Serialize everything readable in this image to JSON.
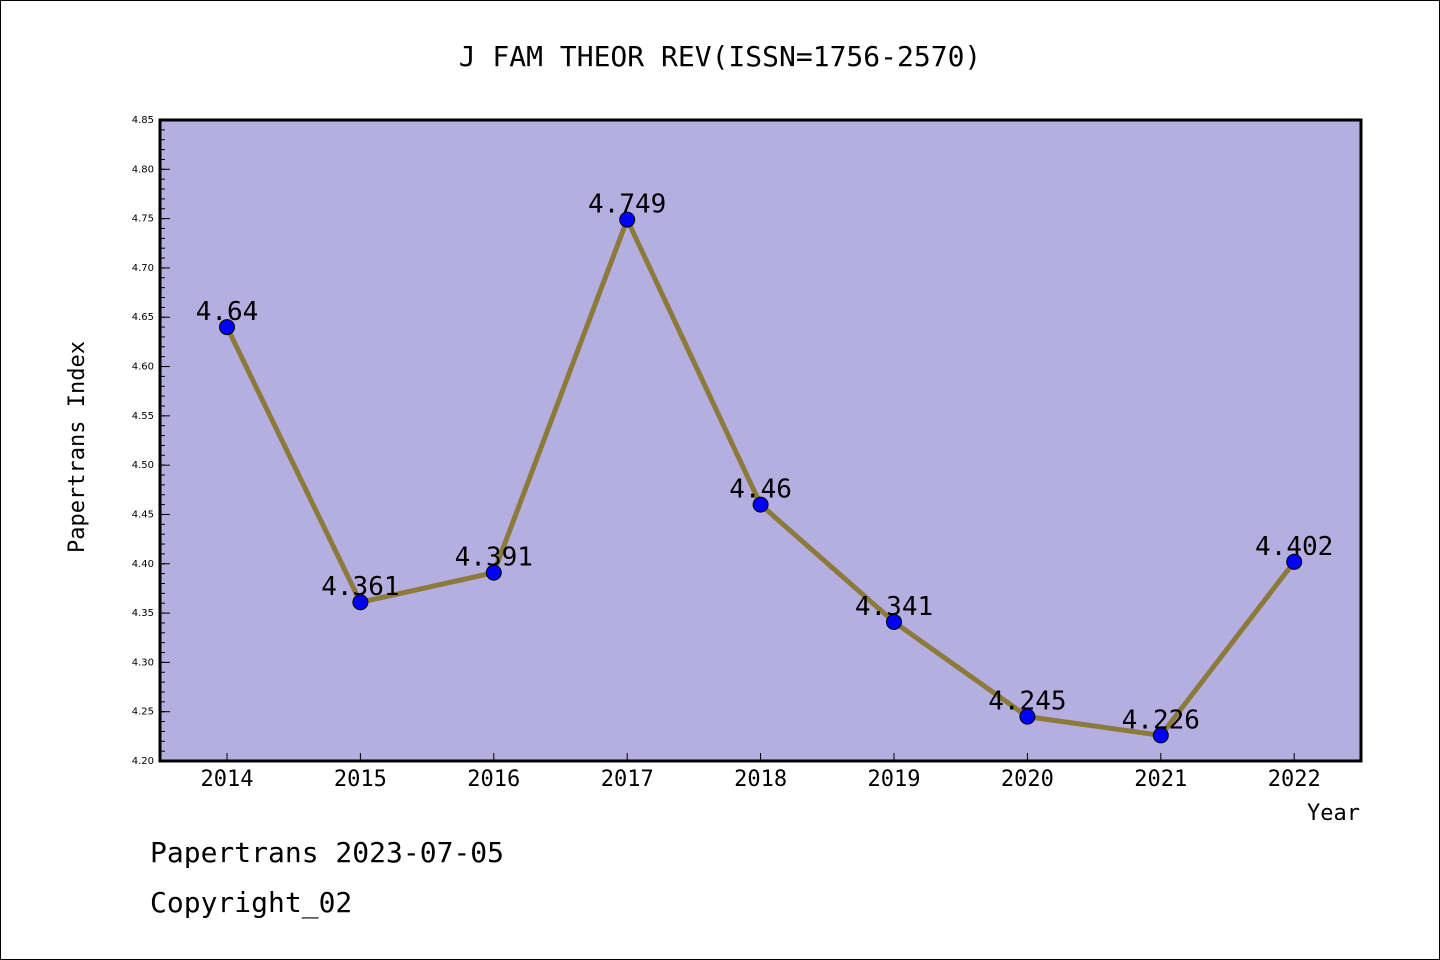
{
  "chart_data": {
    "type": "line",
    "title": "J FAM THEOR REV(ISSN=1756-2570)",
    "xlabel": "Year",
    "ylabel": "Papertrans Index",
    "categories": [
      "2014",
      "2015",
      "2016",
      "2017",
      "2018",
      "2019",
      "2020",
      "2021",
      "2022"
    ],
    "series": [
      {
        "values": [
          4.64,
          4.361,
          4.391,
          4.749,
          4.46,
          4.341,
          4.245,
          4.226,
          4.402
        ],
        "data_labels": [
          "4.64",
          "4.361",
          "4.391",
          "4.749",
          "4.46",
          "4.341",
          "4.245",
          "4.226",
          "4.402"
        ]
      }
    ],
    "ylim": [
      4.2,
      4.85
    ],
    "yticks": [
      "4.20",
      "4.25",
      "4.30",
      "4.35",
      "4.40",
      "4.45",
      "4.50",
      "4.55",
      "4.60",
      "4.65",
      "4.70",
      "4.75",
      "4.80",
      "4.85"
    ],
    "grid": false,
    "colors": {
      "plot_background": "#b5aee0",
      "line": "#8b7a3a",
      "marker": "#0000ff"
    }
  },
  "footer": {
    "line1": "Papertrans 2023-07-05",
    "line2": "Copyright_02"
  }
}
